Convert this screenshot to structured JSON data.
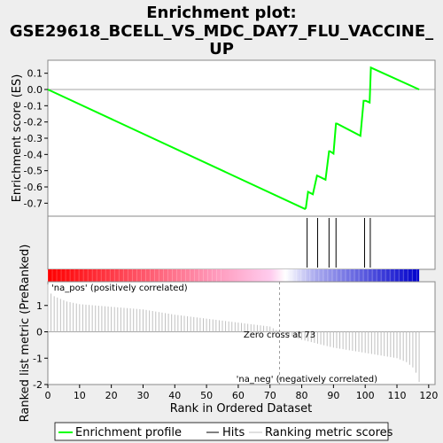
{
  "chart_data": {
    "type": "line",
    "title": "Enrichment plot: GSE29618_BCELL_VS_MDC_DAY7_FLU_VACCINE_UP",
    "title_lines": [
      "Enrichment plot:",
      "GSE29618_BCELL_VS_MDC_DAY7_FLU_VACCINE_",
      "UP"
    ],
    "colors": {
      "background": "#eeeeee",
      "panel": "#ffffff",
      "profile": "#00ff00",
      "hits": "#000000",
      "metric": "#c0c0c0",
      "pos_label": "#cc0000",
      "neg_label": "#0000aa",
      "zero_line": "#888888"
    },
    "top_panel": {
      "ylabel": "Enrichment score (ES)",
      "ylim": [
        -0.78,
        0.18
      ],
      "yticks": [
        0.1,
        0.0,
        -0.1,
        -0.2,
        -0.3,
        -0.4,
        -0.5,
        -0.6,
        -0.7
      ],
      "ytick_labels": [
        "0.1",
        "0.0",
        "-0.1",
        "-0.2",
        "-0.3",
        "-0.4",
        "-0.5",
        "-0.6",
        "-0.7"
      ],
      "es_profile": {
        "x": [
          0,
          81,
          81.3,
          82,
          83.5,
          84.8,
          85.4,
          87.5,
          88.6,
          88.9,
          90.0,
          90.8,
          91.1,
          98.5,
          99.5,
          100.2,
          101.4,
          101.8,
          117
        ],
        "y": [
          0.0,
          -0.735,
          -0.73,
          -0.63,
          -0.645,
          -0.53,
          -0.535,
          -0.555,
          -0.38,
          -0.38,
          -0.395,
          -0.21,
          -0.21,
          -0.285,
          -0.07,
          -0.07,
          -0.08,
          0.135,
          0.0
        ]
      }
    },
    "hits": [
      81.7,
      85.0,
      88.6,
      90.8,
      99.8,
      101.6
    ],
    "bottom_panel": {
      "ylabel": "Ranked list metric (PreRanked)",
      "ylim": [
        -2,
        1.9
      ],
      "yticks": [
        1,
        0,
        -1,
        -2
      ],
      "ytick_labels": [
        "1",
        "0",
        "-1",
        "-2"
      ],
      "xlabel": "Rank in Ordered Dataset",
      "xlim": [
        0,
        122
      ],
      "xticks": [
        0,
        10,
        20,
        30,
        40,
        50,
        60,
        70,
        80,
        90,
        100,
        110,
        120
      ],
      "xtick_labels": [
        "0",
        "10",
        "20",
        "30",
        "40",
        "50",
        "60",
        "70",
        "80",
        "90",
        "100",
        "110",
        "120"
      ],
      "pos_label": "'na_pos' (positively correlated)",
      "neg_label": "'na_neg' (negatively correlated)",
      "zero_cross_label": "Zero cross at 73",
      "zero_cross": 73,
      "n_genes": 117,
      "metric_profile": {
        "x": [
          0,
          1,
          2,
          4,
          6,
          10,
          20,
          30,
          40,
          50,
          60,
          70,
          73,
          80,
          90,
          100,
          105,
          110,
          113,
          115,
          116,
          117
        ],
        "y": [
          1.8,
          1.45,
          1.35,
          1.25,
          1.15,
          1.05,
          0.95,
          0.85,
          0.65,
          0.5,
          0.35,
          0.2,
          0.0,
          -0.3,
          -0.6,
          -0.8,
          -0.9,
          -1.0,
          -1.15,
          -1.35,
          -1.55,
          -1.9
        ]
      }
    },
    "legend": [
      {
        "label": "Enrichment profile",
        "color": "#00ff00"
      },
      {
        "label": "Hits",
        "color": "#000000"
      },
      {
        "label": "Ranking metric scores",
        "color": "#c0c0c0"
      }
    ]
  }
}
